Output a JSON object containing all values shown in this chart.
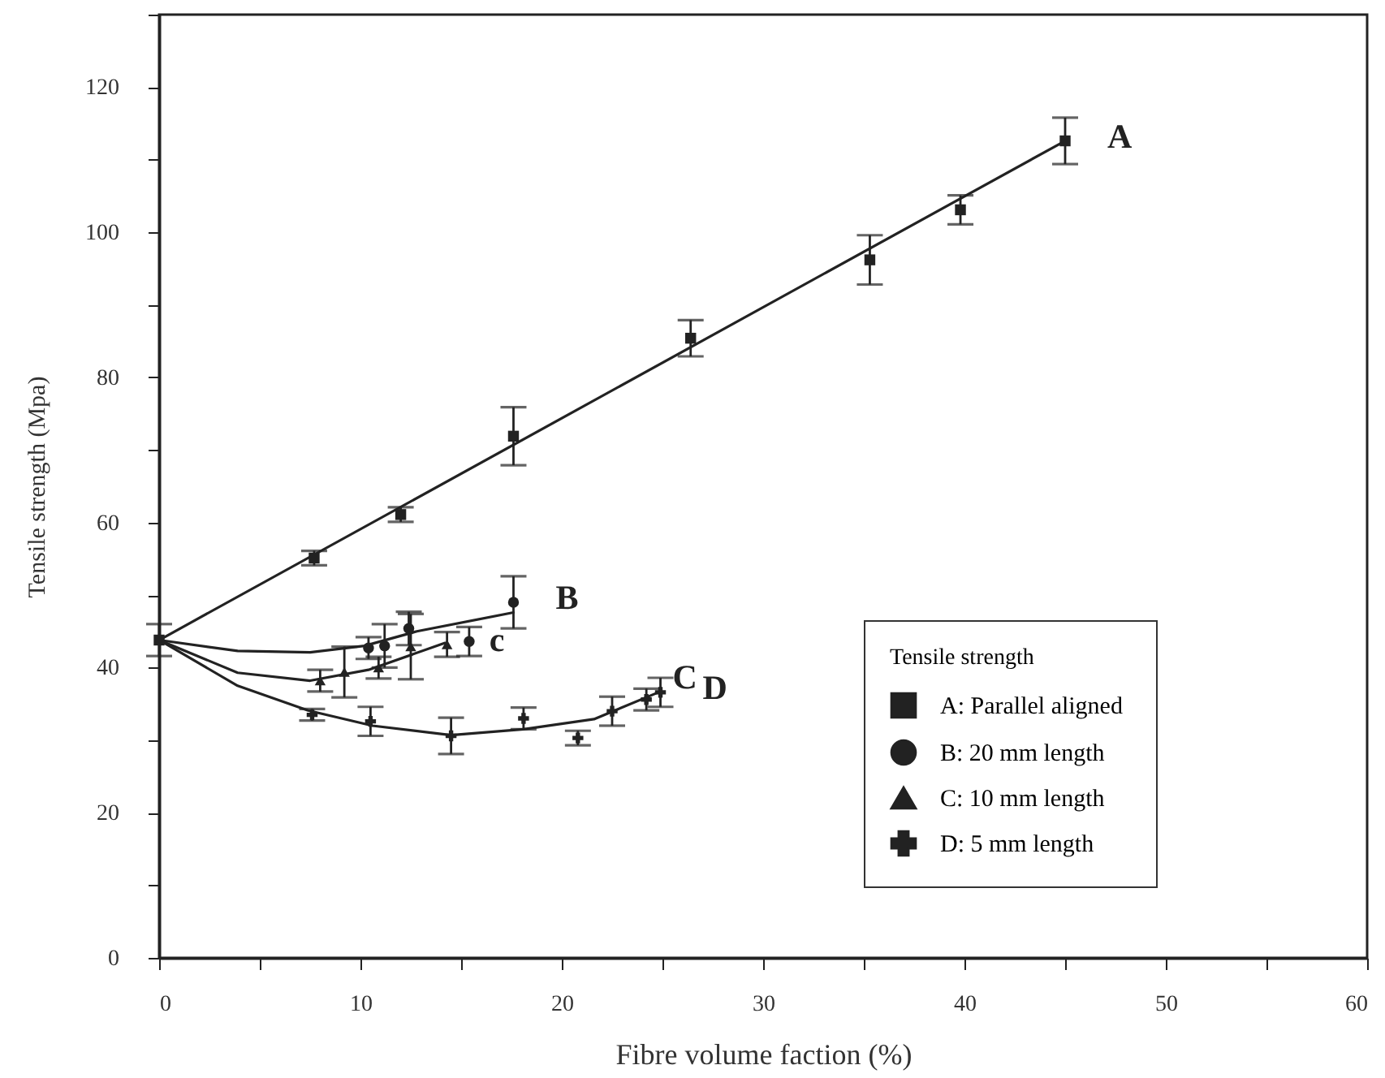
{
  "chart_data": {
    "type": "scatter",
    "xlabel": "Fibre volume faction (%)",
    "ylabel": "Tensile strength (Mpa)",
    "legend_title": "Tensile strength",
    "legend": "bottom right",
    "grid": false,
    "xlim": [
      0,
      60
    ],
    "xticks": [
      0,
      {
        "value": 5,
        "label": null
      },
      10,
      {
        "value": 15,
        "label": null
      },
      20,
      {
        "value": 25,
        "label": null
      },
      30,
      {
        "value": 35,
        "label": null
      },
      40,
      {
        "value": 45,
        "label": null
      },
      50,
      {
        "value": 55,
        "label": null
      },
      60
    ],
    "ylim": [
      0,
      130
    ],
    "yticks": [
      0,
      {
        "value": 10,
        "label": null
      },
      20,
      {
        "value": 30,
        "label": null
      },
      40,
      {
        "value": 50,
        "label": null
      },
      60,
      {
        "value": 70,
        "label": null
      },
      80,
      {
        "value": 90,
        "label": null
      },
      100,
      {
        "value": 110,
        "label": null
      },
      120,
      {
        "value": 130,
        "label": null
      }
    ],
    "series": [
      {
        "name": "A:  Parallel aligned",
        "marker": "square",
        "color": "#222222",
        "x": [
          0,
          7.7,
          12.0,
          17.6,
          26.4,
          35.3,
          39.8,
          45.0
        ],
        "values": [
          43.8,
          55.1,
          61.1,
          71.9,
          85.4,
          96.2,
          103.1,
          112.6
        ],
        "errors": [
          2.2,
          1,
          1,
          4,
          2.5,
          3.4,
          2,
          3.2
        ]
      },
      {
        "name": "B:  20 mm length",
        "marker": "circle",
        "color": "#222222",
        "x": [
          10.4,
          11.2,
          12.4,
          15.4,
          17.6
        ],
        "values": [
          42.7,
          43.0,
          45.4,
          43.6,
          49.0
        ],
        "errors": [
          1.5,
          3,
          2.3,
          2,
          3.6
        ]
      },
      {
        "name": "C:  10 mm length",
        "marker": "triangle",
        "color": "#222222",
        "x": [
          8.0,
          9.2,
          10.9,
          12.5,
          14.3
        ],
        "values": [
          38.2,
          39.4,
          40.0,
          42.9,
          43.2
        ],
        "errors": [
          1.5,
          3.5,
          1.5,
          4.5,
          1.7
        ]
      },
      {
        "name": "D:  5 mm length",
        "marker": "cross",
        "color": "#222222",
        "x": [
          7.6,
          10.5,
          14.5,
          18.1,
          20.8,
          22.5,
          24.2,
          24.9
        ],
        "values": [
          33.5,
          32.6,
          30.6,
          33.0,
          30.3,
          34.0,
          35.6,
          36.6
        ],
        "errors": [
          0.8,
          2,
          2.5,
          1.5,
          1,
          2,
          1.5,
          2
        ]
      },
      {
        "type": "line",
        "marker": "none",
        "color": "#222222",
        "x": [
          0,
          45.0
        ],
        "values": [
          43.8,
          112.6
        ]
      },
      {
        "type": "line",
        "marker": "none",
        "color": "#222222",
        "x": [
          0,
          3.9,
          7.5,
          10.2,
          12.8,
          17.6
        ],
        "values": [
          43.8,
          42.3,
          42.1,
          43.0,
          45.0,
          47.6
        ]
      },
      {
        "type": "line",
        "marker": "none",
        "color": "#222222",
        "x": [
          0,
          3.9,
          7.5,
          10.4,
          14.2
        ],
        "values": [
          43.8,
          39.3,
          38.2,
          39.7,
          43.4
        ]
      },
      {
        "type": "line",
        "marker": "none",
        "color": "#222222",
        "x": [
          0,
          3.9,
          7.4,
          10.6,
          14.5,
          18.1,
          21.6,
          24.8
        ],
        "values": [
          43.8,
          37.5,
          34.1,
          32.0,
          30.7,
          31.5,
          32.9,
          36.6
        ]
      }
    ],
    "annotations": [
      "A",
      "B",
      "c",
      "D",
      {
        "text": "C",
        "x": 25.5,
        "y": 38.5
      }
    ]
  }
}
